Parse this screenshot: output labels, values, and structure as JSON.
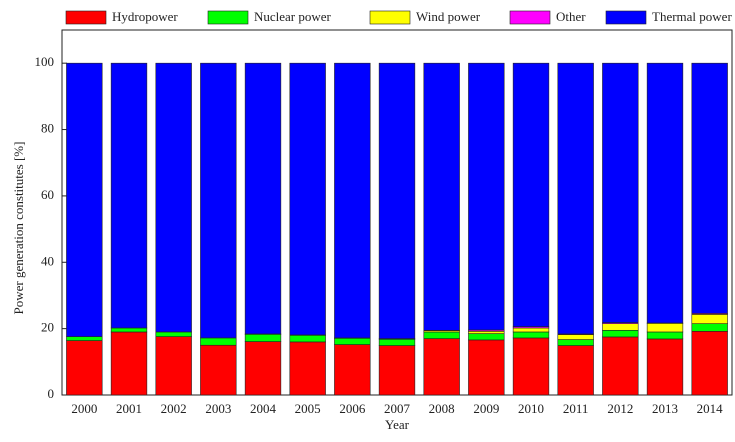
{
  "chart_data": {
    "type": "stacked_bar",
    "xlabel": "Year",
    "ylabel": "Power generation constitutes [%]",
    "categories": [
      "2000",
      "2001",
      "2002",
      "2003",
      "2004",
      "2005",
      "2006",
      "2007",
      "2008",
      "2009",
      "2010",
      "2011",
      "2012",
      "2013",
      "2014"
    ],
    "series": [
      {
        "name": "Hydropower",
        "color": "#ff0000",
        "values": [
          16.4,
          19.0,
          17.6,
          15.0,
          16.1,
          16.0,
          15.2,
          14.9,
          17.0,
          16.6,
          17.2,
          14.9,
          17.5,
          16.9,
          19.2
        ]
      },
      {
        "name": "Nuclear power",
        "color": "#00ff00",
        "values": [
          1.2,
          1.2,
          1.4,
          2.2,
          2.2,
          2.0,
          1.9,
          1.9,
          2.0,
          1.9,
          1.8,
          1.8,
          2.0,
          2.1,
          2.3
        ]
      },
      {
        "name": "Wind power",
        "color": "#ffff00",
        "values": [
          0,
          0,
          0,
          0,
          0,
          0.1,
          0.1,
          0.2,
          0.4,
          0.7,
          1.2,
          1.5,
          2.0,
          2.6,
          2.8
        ]
      },
      {
        "name": "Other",
        "color": "#ff00ff",
        "values": [
          0,
          0,
          0,
          0,
          0.1,
          0,
          0,
          0,
          0.1,
          0.4,
          0.4,
          0.2,
          0.3,
          0.1,
          0.3
        ]
      },
      {
        "name": "Thermal power",
        "color": "#0000ff",
        "values": [
          82.4,
          79.8,
          81.0,
          82.8,
          81.6,
          81.9,
          82.8,
          83.0,
          80.5,
          80.4,
          79.4,
          81.6,
          78.2,
          78.3,
          75.4
        ]
      }
    ],
    "ylim": [
      0,
      110
    ],
    "yticks": [
      0,
      20,
      40,
      60,
      80,
      100
    ],
    "legend": "top"
  }
}
